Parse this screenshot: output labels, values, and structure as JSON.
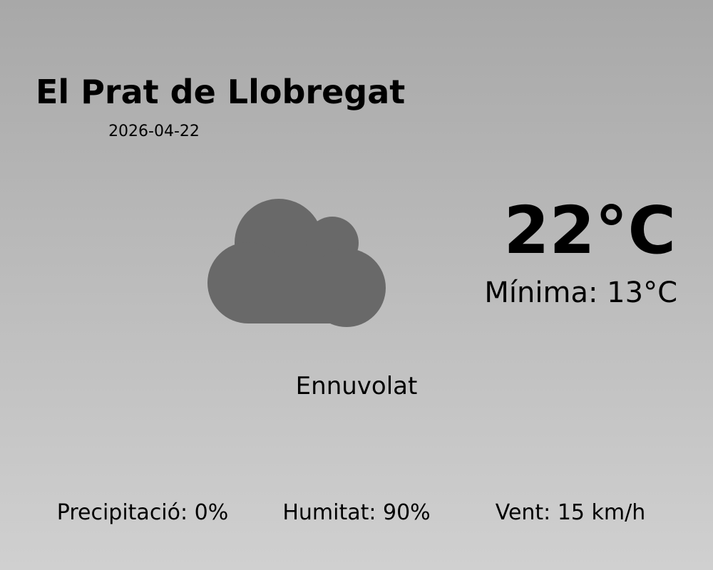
{
  "location": "El Prat de Llobregat",
  "date": "2026-04-22",
  "temperature": "22°C",
  "minimum": "Mínima: 13°C",
  "condition": "Ennuvolat",
  "icon": "cloud-icon",
  "icon_color": "#696969",
  "stats": {
    "precipitation": "Precipitació: 0%",
    "humidity": "Humitat: 90%",
    "wind": "Vent: 15 km/h"
  }
}
